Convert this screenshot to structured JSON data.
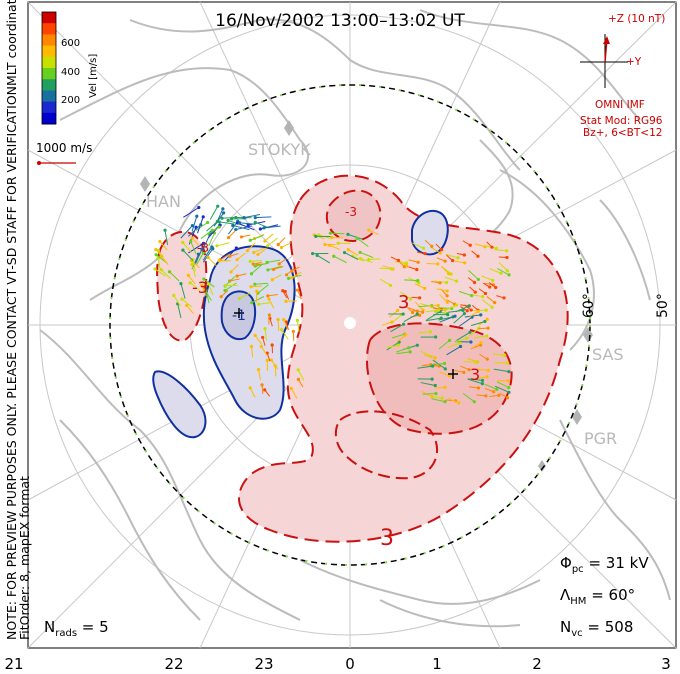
{
  "title": "16/Nov/2002 13:00–13:02 UT",
  "side_note_line1": "NOTE: FOR PREVIEW PURPOSES ONLY. PLEASE CONTACT VT-SD STAFF FOR VERIFICATION.",
  "side_note_line2": "FitOrder: 8, mapEX format",
  "coord_label": "MLT coordinates",
  "color_scale": {
    "label": "Vel [m/s]",
    "ticks": [
      "600",
      "400",
      "200"
    ],
    "colors": [
      "#cc0000",
      "#ff4400",
      "#ff8800",
      "#ffbb00",
      "#c8e000",
      "#66d020",
      "#22a060",
      "#1870a0",
      "#1a2ad0",
      "#0000cc"
    ]
  },
  "vector_scale_label": "1000 m/s",
  "imf": {
    "z_label": "+Z (10 nT)",
    "y_label": "+Y",
    "omni_label": "OMNI IMF",
    "stat_mod": "Stat Mod: RG96",
    "condition": "Bz+, 6<BT<12"
  },
  "stations": [
    "STOKYK",
    "HAN",
    "SAS",
    "PGR"
  ],
  "lat_labels": [
    "60°",
    "50°"
  ],
  "contour_labels": [
    "3",
    "-3",
    "3",
    "-1",
    "-3",
    "3",
    "-3"
  ],
  "mlt_ticks": [
    "21",
    "22",
    "23",
    "0",
    "1",
    "2",
    "3"
  ],
  "stats": {
    "phi_pc": "Φpc = 31 kV",
    "lambda_hm": "ΛHM = 60°",
    "n_vc": "Nvc = 508",
    "n_rads": "Nrads = 5"
  },
  "colors": {
    "positive_fill": "#f5d5d5",
    "positive_line": "#cc1010",
    "negative_fill": "#dcdcec",
    "negative_line": "#1030a0",
    "land": "#bcbcbc"
  }
}
